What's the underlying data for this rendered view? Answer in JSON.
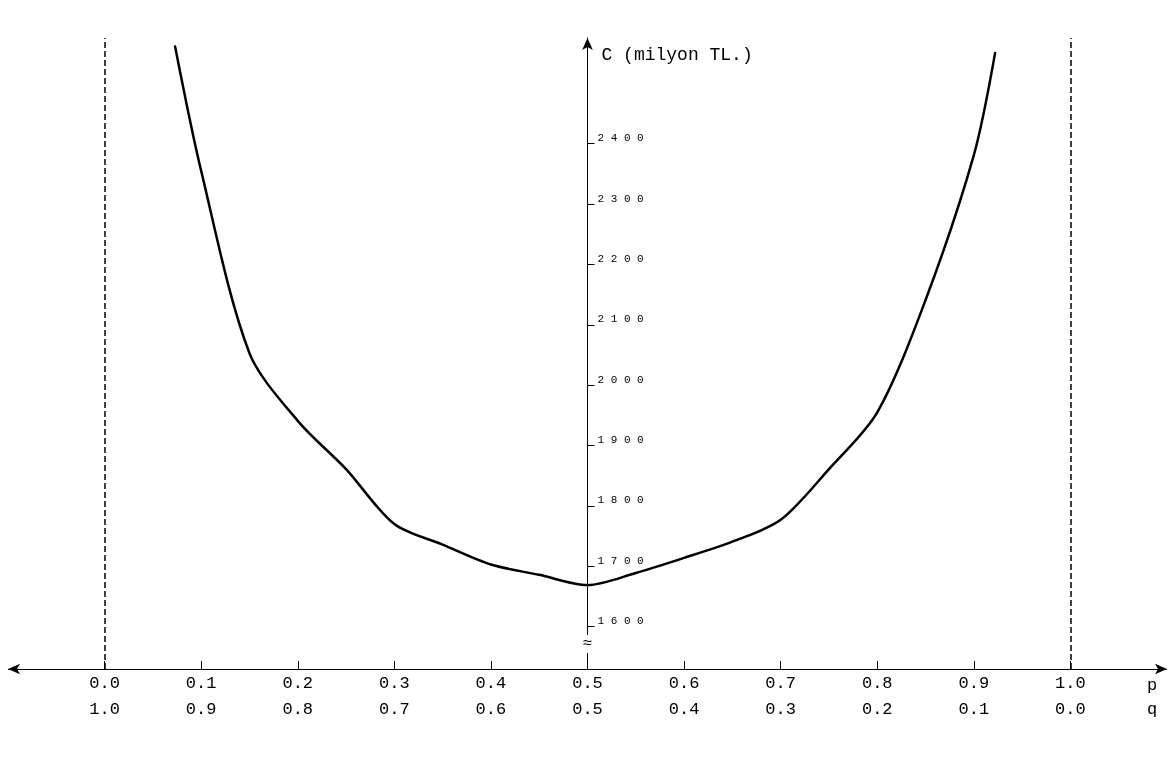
{
  "chart_data": {
    "type": "line",
    "ylabel": "C (milyon TL.)",
    "xlabel": "p",
    "x2label": "q",
    "x": [
      0.073,
      0.1,
      0.15,
      0.2,
      0.25,
      0.3,
      0.35,
      0.4,
      0.45,
      0.5,
      0.55,
      0.6,
      0.65,
      0.7,
      0.75,
      0.8,
      0.85,
      0.9,
      0.922
    ],
    "series": [
      {
        "color": "#000000",
        "values": [
          2561,
          2355,
          2053,
          1941,
          1861,
          1770,
          1736,
          1703,
          1686,
          1669,
          1689,
          1714,
          1741,
          1777,
          1861,
          1955,
          2141,
          2381,
          2550
        ]
      }
    ],
    "xlim": [
      -0.1,
      1.1
    ],
    "xticks": [
      {
        "value": 0,
        "label": "0.0"
      },
      0.1,
      0.2,
      0.3,
      0.4,
      0.5,
      0.6,
      0.7,
      0.8,
      0.9,
      {
        "value": 1,
        "label": "1.0"
      }
    ],
    "x2lim": [
      1.1,
      -0.1
    ],
    "x2ticks": [
      {
        "value": 1,
        "label": "1.0"
      },
      0.9,
      0.8,
      0.7,
      0.6,
      0.5,
      0.4,
      0.3,
      0.2,
      0.1,
      {
        "value": 0,
        "label": "0.0"
      }
    ],
    "ylim": [
      1530,
      2575
    ],
    "yticks": [
      1600,
      1700,
      1800,
      1900,
      2000,
      2100,
      2200,
      2300,
      2400
    ],
    "ref_lines": [
      {
        "axis": "x",
        "value": 0,
        "line_style": "dashed"
      },
      {
        "axis": "x",
        "value": 1,
        "line_style": "dashed"
      }
    ],
    "annotations": [
      "≈"
    ],
    "grid": false,
    "marker": "none",
    "line_style": "solid"
  }
}
